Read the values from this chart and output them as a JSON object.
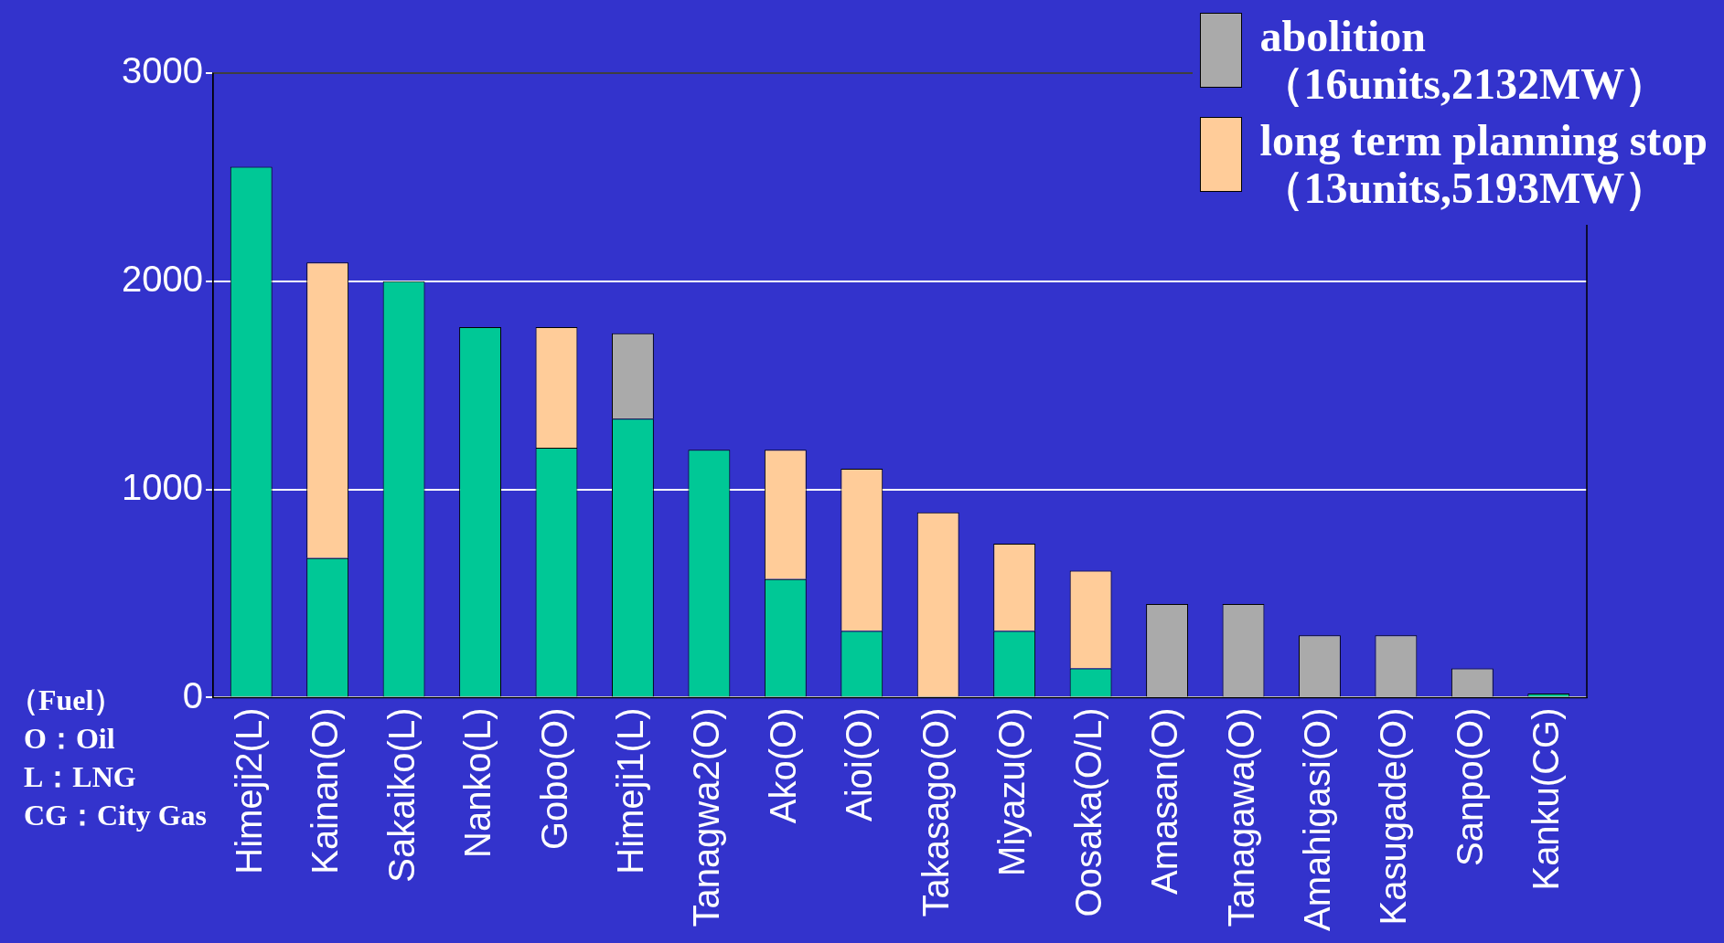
{
  "chart_data": {
    "type": "bar",
    "stacked": true,
    "categories": [
      "Himeji2(L)",
      "Kainan(O)",
      "Sakaiko(L)",
      "Nanko(L)",
      "Gobo(O)",
      "Himeji1(L)",
      "Tanagwa2(O)",
      "Ako(O)",
      "Aioi(O)",
      "Takasago(O)",
      "Miyazu(O)",
      "Oosaka(O/L)",
      "Amasan(O)",
      "Tanagawa(O)",
      "Amahigasi(O)",
      "Kasugade(O)",
      "Sanpo(O)",
      "Kanku(CG)"
    ],
    "series": [
      {
        "color": "#00c896",
        "values": [
          2550,
          670,
          2000,
          1780,
          1200,
          1340,
          1190,
          570,
          320,
          null,
          320,
          140,
          null,
          null,
          null,
          null,
          null,
          20
        ]
      },
      {
        "name": "long term planning stop\n（13units,5193MW）",
        "color": "#ffcc99",
        "values": [
          null,
          1420,
          null,
          null,
          580,
          null,
          null,
          620,
          780,
          890,
          420,
          470,
          null,
          null,
          null,
          null,
          null,
          null
        ]
      },
      {
        "name": "abolition\n（16units,2132MW）",
        "color": "#aaaaaa",
        "values": [
          null,
          null,
          null,
          null,
          null,
          410,
          null,
          null,
          null,
          null,
          null,
          null,
          450,
          450,
          300,
          300,
          140,
          null
        ]
      }
    ],
    "ylim": [
      0,
      3000
    ],
    "yticks": [
      0,
      1000,
      2000,
      3000
    ],
    "grid": "y",
    "legend": "top right",
    "annotations": [
      "（Fuel）",
      "O：Oil",
      "L：LNG",
      "CG：City Gas"
    ]
  }
}
